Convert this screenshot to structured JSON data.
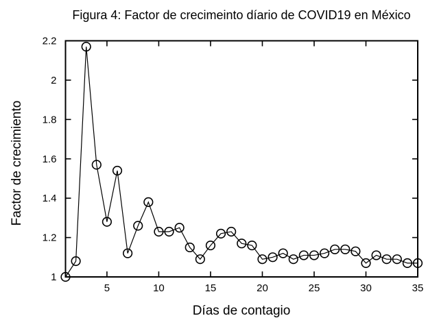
{
  "chart_data": {
    "type": "line",
    "title": "Figura 4: Factor de crecimeinto díario de COVID19 en México",
    "xlabel": "Días de contagio",
    "ylabel": "Factor de crecimiento",
    "x": [
      1,
      2,
      3,
      4,
      5,
      6,
      7,
      8,
      9,
      10,
      11,
      12,
      13,
      14,
      15,
      16,
      17,
      18,
      19,
      20,
      21,
      22,
      23,
      24,
      25,
      26,
      27,
      28,
      29,
      30,
      31,
      32,
      33,
      34,
      35
    ],
    "y": [
      1.0,
      1.08,
      2.17,
      1.57,
      1.28,
      1.54,
      1.12,
      1.26,
      1.38,
      1.23,
      1.23,
      1.25,
      1.15,
      1.09,
      1.16,
      1.22,
      1.23,
      1.17,
      1.16,
      1.09,
      1.1,
      1.12,
      1.09,
      1.11,
      1.11,
      1.12,
      1.14,
      1.14,
      1.13,
      1.07,
      1.11,
      1.09,
      1.09,
      1.07,
      1.07
    ],
    "xlim": [
      1,
      35
    ],
    "ylim": [
      1.0,
      2.2
    ],
    "xticks": [
      5,
      10,
      15,
      20,
      25,
      30,
      35
    ],
    "xtick_labels": [
      "5",
      "10",
      "15",
      "20",
      "25",
      "30",
      "35"
    ],
    "yticks": [
      1.0,
      1.2,
      1.4,
      1.6,
      1.8,
      2.0,
      2.2
    ],
    "ytick_labels": [
      "1",
      "1.2",
      "1.4",
      "1.6",
      "1.8",
      "2",
      "2.2"
    ],
    "marker": "open-circle",
    "line_color": "#000000",
    "marker_color": "#000000",
    "background_color": "#ffffff",
    "grid": false,
    "legend_position": "none",
    "ticks_mirrored": true
  }
}
